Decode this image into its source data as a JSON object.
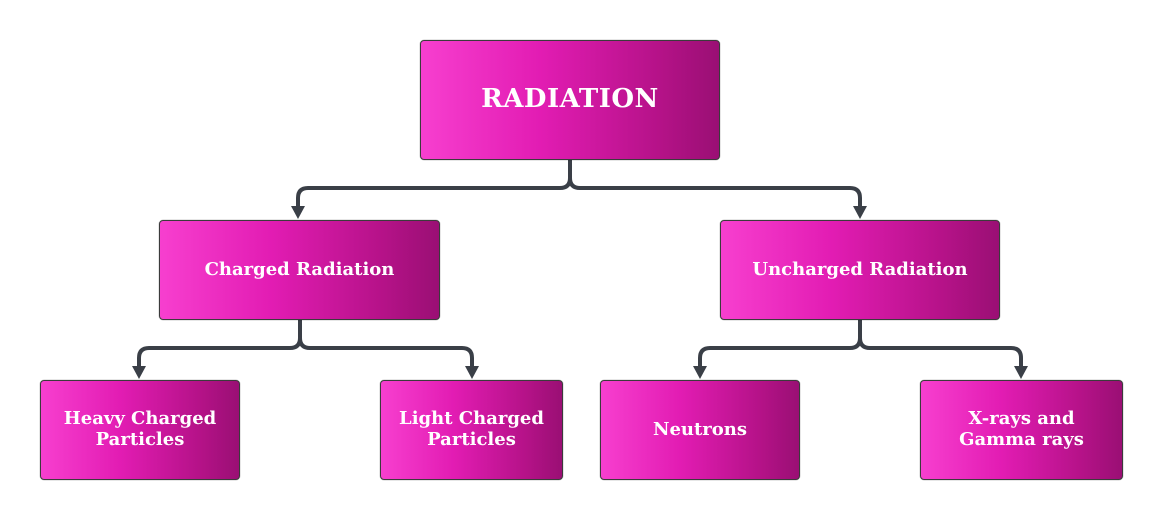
{
  "diagram": {
    "root": {
      "label": "RADIATION"
    },
    "children": [
      {
        "label": "Charged Radiation",
        "children": [
          {
            "label": "Heavy Charged\nParticles"
          },
          {
            "label": "Light Charged\nParticles"
          }
        ]
      },
      {
        "label": "Uncharged Radiation",
        "children": [
          {
            "label": "Neutrons"
          },
          {
            "label": "X-rays and\nGamma rays"
          }
        ]
      }
    ]
  },
  "colors": {
    "box_gradient": [
      "#f73fcf",
      "#e21cb3",
      "#b51288",
      "#9a0f74"
    ],
    "connector": "#3a3f47",
    "text": "#ffffff"
  }
}
